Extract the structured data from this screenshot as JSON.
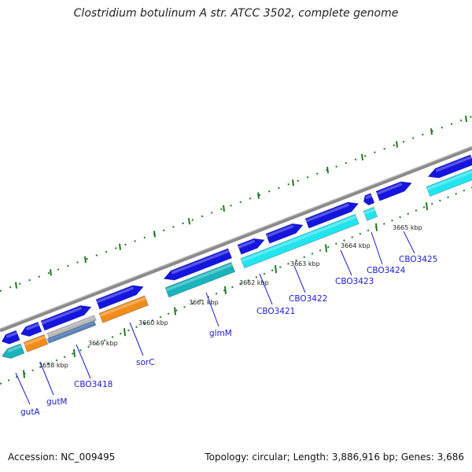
{
  "title": "Clostridium botulinum A str. ATCC 3502, complete genome",
  "footer": {
    "accession": "Accession: NC_009495",
    "summary": "Topology: circular; Length: 3,886,916 bp; Genes: 3,686"
  },
  "colors": {
    "backbone": "#8a8a8a",
    "forward_cds": "#1515e0",
    "reverse_cds": "#22e4ee",
    "reverse_cds_dark": "#19b4bc",
    "orange_feature": "#f08c1a",
    "grey_feature": "#b8b8b8",
    "steel_feature": "#5a84b8",
    "tick_color": "#1e7a1e",
    "label_color": "#1a1adc"
  },
  "ruler": {
    "unit": "kbp",
    "labels": [
      "3658 kbp",
      "3659 kbp",
      "3660 kbp",
      "3661 kbp",
      "3662 kbp",
      "3663 kbp",
      "3664 kbp",
      "3665 kbp"
    ]
  },
  "gene_labels": [
    "gutA",
    "gutM",
    "CBO3418",
    "sorC",
    "glmM",
    "CBO3421",
    "CBO3422",
    "CBO3423",
    "CBO3424",
    "CBO3425"
  ]
}
